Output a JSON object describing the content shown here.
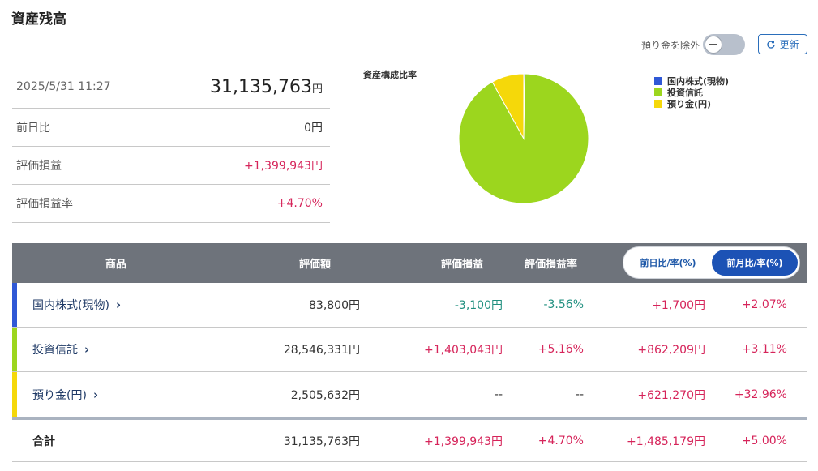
{
  "title": "資産残高",
  "summary": {
    "datetime": "2025/5/31 11:27",
    "total": "31,135,763",
    "yen": "円",
    "rows": [
      {
        "label": "前日比",
        "value": "0円"
      },
      {
        "label": "評価損益",
        "value": "+1,399,943円"
      },
      {
        "label": "評価損益率",
        "value": "+4.70%"
      }
    ]
  },
  "controls": {
    "toggle_label": "預り金を除外",
    "refresh_label": "更新"
  },
  "chart": {
    "title": "資産構成比率",
    "legend": [
      {
        "name": "国内株式(現物)",
        "color": "#2f58d6"
      },
      {
        "name": "投資信託",
        "color": "#9cd61e"
      },
      {
        "name": "預り金(円)",
        "color": "#f5d80a"
      }
    ]
  },
  "chart_data": {
    "type": "pie",
    "title": "資産構成比率",
    "categories": [
      "国内株式(現物)",
      "投資信託",
      "預り金(円)"
    ],
    "values": [
      83800,
      28546331,
      2505632
    ],
    "colors": [
      "#2f58d6",
      "#9cd61e",
      "#f5d80a"
    ]
  },
  "table": {
    "headers": {
      "product": "商品",
      "value": "評価額",
      "gain": "評価損益",
      "rate": "評価損益率",
      "day_toggle": "前日比/率(%)",
      "month_toggle": "前月比/率(%)"
    },
    "rows": [
      {
        "name": "国内株式(現物)",
        "value": "83,800円",
        "gain": "-3,100円",
        "rate": "-3.56%",
        "month_amount": "+1,700円",
        "month_rate": "+2.07%",
        "accent": "#2f58d6"
      },
      {
        "name": "投資信託",
        "value": "28,546,331円",
        "gain": "+1,403,043円",
        "rate": "+5.16%",
        "month_amount": "+862,209円",
        "month_rate": "+3.11%",
        "accent": "#9cd61e"
      },
      {
        "name": "預り金(円)",
        "value": "2,505,632円",
        "gain": "--",
        "rate": "--",
        "month_amount": "+621,270円",
        "month_rate": "+32.96%",
        "accent": "#f5d80a"
      }
    ],
    "total": {
      "name": "合計",
      "value": "31,135,763円",
      "gain": "+1,399,943円",
      "rate": "+4.70%",
      "month_amount": "+1,485,179円",
      "month_rate": "+5.00%"
    }
  },
  "icons": {
    "chevron": "chevron-right-icon",
    "refresh": "refresh-icon"
  }
}
